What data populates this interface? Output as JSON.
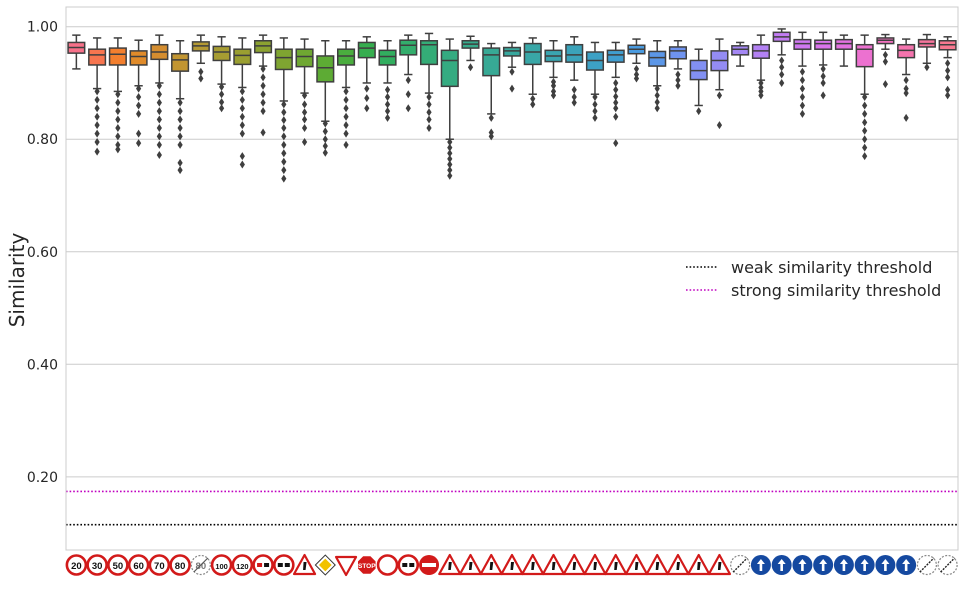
{
  "chart_data": {
    "type": "box",
    "ylabel": "Similarity",
    "ylim": [
      0.07,
      1.035
    ],
    "yticks": [
      0.2,
      0.4,
      0.6,
      0.8,
      1.0
    ],
    "ytick_labels": [
      "0.20",
      "0.40",
      "0.60",
      "0.80",
      "1.00"
    ],
    "grid": true,
    "legend_position": "center-right",
    "thresholds": [
      {
        "name": "weak similarity threshold",
        "value": 0.115,
        "color": "#000000"
      },
      {
        "name": "strong similarity threshold",
        "value": 0.174,
        "color": "#c000c0"
      }
    ],
    "categories": [
      {
        "icon": "speed-limit-20",
        "kind": "speed",
        "text": "20"
      },
      {
        "icon": "speed-limit-30",
        "kind": "speed",
        "text": "30"
      },
      {
        "icon": "speed-limit-50",
        "kind": "speed",
        "text": "50"
      },
      {
        "icon": "speed-limit-60",
        "kind": "speed",
        "text": "60"
      },
      {
        "icon": "speed-limit-70",
        "kind": "speed",
        "text": "70"
      },
      {
        "icon": "speed-limit-80",
        "kind": "speed",
        "text": "80"
      },
      {
        "icon": "end-speed-limit-80",
        "kind": "end-speed",
        "text": "80"
      },
      {
        "icon": "speed-limit-100",
        "kind": "speed",
        "text": "100"
      },
      {
        "icon": "speed-limit-120",
        "kind": "speed",
        "text": "120"
      },
      {
        "icon": "no-overtaking",
        "kind": "no-pass"
      },
      {
        "icon": "no-overtaking-trucks",
        "kind": "no-pass-truck"
      },
      {
        "icon": "right-of-way-next-intersection",
        "kind": "warn-triangle"
      },
      {
        "icon": "priority-road",
        "kind": "priority"
      },
      {
        "icon": "yield",
        "kind": "yield"
      },
      {
        "icon": "stop",
        "kind": "stop",
        "text": "STOP"
      },
      {
        "icon": "no-vehicles",
        "kind": "no-vehicles"
      },
      {
        "icon": "no-trucks",
        "kind": "no-pass-truck"
      },
      {
        "icon": "no-entry",
        "kind": "no-entry"
      },
      {
        "icon": "general-caution",
        "kind": "warn-triangle"
      },
      {
        "icon": "dangerous-curve-left",
        "kind": "warn-triangle"
      },
      {
        "icon": "dangerous-curve-right",
        "kind": "warn-triangle"
      },
      {
        "icon": "double-curve",
        "kind": "warn-triangle"
      },
      {
        "icon": "bumpy-road",
        "kind": "warn-triangle"
      },
      {
        "icon": "slippery-road",
        "kind": "warn-triangle"
      },
      {
        "icon": "road-narrows",
        "kind": "warn-triangle"
      },
      {
        "icon": "road-work",
        "kind": "warn-triangle"
      },
      {
        "icon": "traffic-signals",
        "kind": "warn-triangle"
      },
      {
        "icon": "pedestrians",
        "kind": "warn-triangle"
      },
      {
        "icon": "children-crossing",
        "kind": "warn-triangle"
      },
      {
        "icon": "bicycles-crossing",
        "kind": "warn-triangle"
      },
      {
        "icon": "ice-snow",
        "kind": "warn-triangle"
      },
      {
        "icon": "wild-animals",
        "kind": "warn-triangle"
      },
      {
        "icon": "end-of-all-limits",
        "kind": "end-limits"
      },
      {
        "icon": "turn-right-ahead",
        "kind": "mandatory"
      },
      {
        "icon": "turn-left-ahead",
        "kind": "mandatory"
      },
      {
        "icon": "ahead-only",
        "kind": "mandatory"
      },
      {
        "icon": "straight-or-right",
        "kind": "mandatory"
      },
      {
        "icon": "straight-or-left",
        "kind": "mandatory"
      },
      {
        "icon": "keep-right",
        "kind": "mandatory"
      },
      {
        "icon": "keep-left",
        "kind": "mandatory"
      },
      {
        "icon": "roundabout",
        "kind": "mandatory"
      },
      {
        "icon": "end-no-overtaking",
        "kind": "end-limits"
      },
      {
        "icon": "end-no-overtaking-trucks",
        "kind": "end-limits"
      }
    ],
    "boxes": [
      {
        "color": "#f77189",
        "whislo": 0.925,
        "q1": 0.953,
        "med": 0.963,
        "q3": 0.972,
        "whishi": 0.985,
        "fliers": []
      },
      {
        "color": "#f7754f",
        "whislo": 0.89,
        "q1": 0.932,
        "med": 0.95,
        "q3": 0.96,
        "whishi": 0.98,
        "fliers": [
          0.885,
          0.87,
          0.855,
          0.84,
          0.825,
          0.81,
          0.795,
          0.778
        ]
      },
      {
        "color": "#f37f2e",
        "whislo": 0.885,
        "q1": 0.932,
        "med": 0.951,
        "q3": 0.962,
        "whishi": 0.98,
        "fliers": [
          0.88,
          0.865,
          0.85,
          0.835,
          0.82,
          0.805,
          0.79,
          0.782
        ]
      },
      {
        "color": "#e08b2a",
        "whislo": 0.895,
        "q1": 0.932,
        "med": 0.947,
        "q3": 0.957,
        "whishi": 0.976,
        "fliers": [
          0.89,
          0.875,
          0.86,
          0.845,
          0.81,
          0.793
        ]
      },
      {
        "color": "#d48d2f",
        "whislo": 0.9,
        "q1": 0.942,
        "med": 0.955,
        "q3": 0.968,
        "whishi": 0.985,
        "fliers": [
          0.895,
          0.88,
          0.865,
          0.85,
          0.835,
          0.82,
          0.805,
          0.79,
          0.772
        ]
      },
      {
        "color": "#c29531",
        "whislo": 0.872,
        "q1": 0.921,
        "med": 0.941,
        "q3": 0.952,
        "whishi": 0.975,
        "fliers": [
          0.865,
          0.85,
          0.835,
          0.82,
          0.805,
          0.79,
          0.758,
          0.745
        ]
      },
      {
        "color": "#b49933",
        "whislo": 0.935,
        "q1": 0.957,
        "med": 0.966,
        "q3": 0.973,
        "whishi": 0.985,
        "fliers": [
          0.92,
          0.908
        ]
      },
      {
        "color": "#a69c32",
        "whislo": 0.898,
        "q1": 0.94,
        "med": 0.955,
        "q3": 0.965,
        "whishi": 0.982,
        "fliers": [
          0.893,
          0.88,
          0.866,
          0.855
        ]
      },
      {
        "color": "#9a9f31",
        "whislo": 0.892,
        "q1": 0.933,
        "med": 0.949,
        "q3": 0.96,
        "whishi": 0.98,
        "fliers": [
          0.885,
          0.87,
          0.855,
          0.84,
          0.825,
          0.81,
          0.77,
          0.755
        ]
      },
      {
        "color": "#8ca231",
        "whislo": 0.93,
        "q1": 0.954,
        "med": 0.966,
        "q3": 0.975,
        "whishi": 0.985,
        "fliers": [
          0.925,
          0.91,
          0.895,
          0.88,
          0.865,
          0.85,
          0.812
        ]
      },
      {
        "color": "#7fa531",
        "whislo": 0.868,
        "q1": 0.924,
        "med": 0.945,
        "q3": 0.96,
        "whishi": 0.98,
        "fliers": [
          0.862,
          0.848,
          0.834,
          0.82,
          0.805,
          0.79,
          0.775,
          0.76,
          0.745,
          0.73
        ]
      },
      {
        "color": "#6fa832",
        "whislo": 0.882,
        "q1": 0.929,
        "med": 0.947,
        "q3": 0.96,
        "whishi": 0.978,
        "fliers": [
          0.878,
          0.862,
          0.848,
          0.835,
          0.82,
          0.795
        ]
      },
      {
        "color": "#5dab34",
        "whislo": 0.832,
        "q1": 0.902,
        "med": 0.927,
        "q3": 0.948,
        "whishi": 0.975,
        "fliers": [
          0.828,
          0.814,
          0.8,
          0.788,
          0.776
        ]
      },
      {
        "color": "#4aad3e",
        "whislo": 0.892,
        "q1": 0.932,
        "med": 0.948,
        "q3": 0.96,
        "whishi": 0.975,
        "fliers": [
          0.885,
          0.87,
          0.855,
          0.84,
          0.825,
          0.81,
          0.79
        ]
      },
      {
        "color": "#36ae4f",
        "whislo": 0.9,
        "q1": 0.945,
        "med": 0.962,
        "q3": 0.972,
        "whishi": 0.982,
        "fliers": [
          0.89,
          0.873,
          0.855
        ]
      },
      {
        "color": "#32ae5f",
        "whislo": 0.9,
        "q1": 0.932,
        "med": 0.947,
        "q3": 0.958,
        "whishi": 0.975,
        "fliers": [
          0.888,
          0.875,
          0.862,
          0.85,
          0.838
        ]
      },
      {
        "color": "#33ad6c",
        "whislo": 0.915,
        "q1": 0.95,
        "med": 0.967,
        "q3": 0.976,
        "whishi": 0.985,
        "fliers": [
          0.905,
          0.88,
          0.855
        ]
      },
      {
        "color": "#34ac77",
        "whislo": 0.882,
        "q1": 0.933,
        "med": 0.968,
        "q3": 0.975,
        "whishi": 0.988,
        "fliers": [
          0.875,
          0.862,
          0.848,
          0.835,
          0.82
        ]
      },
      {
        "color": "#35ab81",
        "whislo": 0.8,
        "q1": 0.894,
        "med": 0.94,
        "q3": 0.958,
        "whishi": 0.978,
        "fliers": [
          0.795,
          0.785,
          0.775,
          0.765,
          0.755,
          0.745,
          0.735
        ]
      },
      {
        "color": "#36aa8b",
        "whislo": 0.94,
        "q1": 0.962,
        "med": 0.969,
        "q3": 0.975,
        "whishi": 0.983,
        "fliers": [
          0.928
        ]
      },
      {
        "color": "#37a995",
        "whislo": 0.845,
        "q1": 0.913,
        "med": 0.95,
        "q3": 0.962,
        "whishi": 0.97,
        "fliers": [
          0.838,
          0.812,
          0.805
        ]
      },
      {
        "color": "#38a89e",
        "whislo": 0.928,
        "q1": 0.948,
        "med": 0.957,
        "q3": 0.963,
        "whishi": 0.972,
        "fliers": [
          0.92,
          0.89
        ]
      },
      {
        "color": "#39a7a7",
        "whislo": 0.88,
        "q1": 0.933,
        "med": 0.955,
        "q3": 0.97,
        "whishi": 0.98,
        "fliers": [
          0.872,
          0.862
        ]
      },
      {
        "color": "#3aa5b0",
        "whislo": 0.91,
        "q1": 0.938,
        "med": 0.948,
        "q3": 0.958,
        "whishi": 0.975,
        "fliers": [
          0.902,
          0.895,
          0.885,
          0.878
        ]
      },
      {
        "color": "#3ba3ba",
        "whislo": 0.905,
        "q1": 0.937,
        "med": 0.95,
        "q3": 0.968,
        "whishi": 0.982,
        "fliers": [
          0.888,
          0.875,
          0.865
        ]
      },
      {
        "color": "#3da1c5",
        "whislo": 0.88,
        "q1": 0.923,
        "med": 0.94,
        "q3": 0.955,
        "whishi": 0.972,
        "fliers": [
          0.875,
          0.862,
          0.85,
          0.838
        ]
      },
      {
        "color": "#409ed0",
        "whislo": 0.91,
        "q1": 0.937,
        "med": 0.95,
        "q3": 0.958,
        "whishi": 0.972,
        "fliers": [
          0.9,
          0.888,
          0.876,
          0.865,
          0.855,
          0.84,
          0.793
        ]
      },
      {
        "color": "#4a9be0",
        "whislo": 0.935,
        "q1": 0.952,
        "med": 0.96,
        "q3": 0.967,
        "whishi": 0.978,
        "fliers": [
          0.925,
          0.915,
          0.908
        ]
      },
      {
        "color": "#5c97e8",
        "whislo": 0.895,
        "q1": 0.93,
        "med": 0.945,
        "q3": 0.956,
        "whishi": 0.975,
        "fliers": [
          0.89,
          0.878,
          0.866,
          0.855
        ]
      },
      {
        "color": "#6f93ef",
        "whislo": 0.925,
        "q1": 0.943,
        "med": 0.957,
        "q3": 0.964,
        "whishi": 0.975,
        "fliers": [
          0.915,
          0.905,
          0.895
        ]
      },
      {
        "color": "#8290f2",
        "whislo": 0.86,
        "q1": 0.906,
        "med": 0.922,
        "q3": 0.94,
        "whishi": 0.96,
        "fliers": [
          0.85
        ]
      },
      {
        "color": "#948cf4",
        "whislo": 0.888,
        "q1": 0.922,
        "med": 0.94,
        "q3": 0.957,
        "whishi": 0.978,
        "fliers": [
          0.878,
          0.825
        ]
      },
      {
        "color": "#a487f4",
        "whislo": 0.93,
        "q1": 0.95,
        "med": 0.96,
        "q3": 0.966,
        "whishi": 0.972,
        "fliers": []
      },
      {
        "color": "#b381f4",
        "whislo": 0.905,
        "q1": 0.944,
        "med": 0.957,
        "q3": 0.968,
        "whishi": 0.985,
        "fliers": [
          0.9,
          0.892,
          0.885,
          0.878
        ]
      },
      {
        "color": "#c27cf3",
        "whislo": 0.95,
        "q1": 0.974,
        "med": 0.982,
        "q3": 0.99,
        "whishi": 0.996,
        "fliers": [
          0.94,
          0.928,
          0.915,
          0.9
        ]
      },
      {
        "color": "#cf78f0",
        "whislo": 0.93,
        "q1": 0.96,
        "med": 0.97,
        "q3": 0.977,
        "whishi": 0.99,
        "fliers": [
          0.92,
          0.905,
          0.89,
          0.875,
          0.86,
          0.845
        ]
      },
      {
        "color": "#da74ec",
        "whislo": 0.932,
        "q1": 0.96,
        "med": 0.97,
        "q3": 0.976,
        "whishi": 0.99,
        "fliers": [
          0.925,
          0.912,
          0.9,
          0.878
        ]
      },
      {
        "color": "#e472e0",
        "whislo": 0.93,
        "q1": 0.96,
        "med": 0.97,
        "q3": 0.977,
        "whishi": 0.985,
        "fliers": []
      },
      {
        "color": "#ec71d0",
        "whislo": 0.88,
        "q1": 0.929,
        "med": 0.96,
        "q3": 0.968,
        "whishi": 0.985,
        "fliers": [
          0.875,
          0.86,
          0.845,
          0.83,
          0.815,
          0.8,
          0.785,
          0.77
        ]
      },
      {
        "color": "#f272bf",
        "whislo": 0.96,
        "q1": 0.97,
        "med": 0.976,
        "q3": 0.98,
        "whishi": 0.986,
        "fliers": [
          0.95,
          0.938,
          0.898
        ]
      },
      {
        "color": "#f574ae",
        "whislo": 0.915,
        "q1": 0.945,
        "med": 0.958,
        "q3": 0.968,
        "whishi": 0.978,
        "fliers": [
          0.905,
          0.89,
          0.882,
          0.838
        ]
      },
      {
        "color": "#f7769d",
        "whislo": 0.935,
        "q1": 0.964,
        "med": 0.97,
        "q3": 0.977,
        "whishi": 0.986,
        "fliers": [
          0.928
        ]
      },
      {
        "color": "#f7788f",
        "whislo": 0.945,
        "q1": 0.959,
        "med": 0.968,
        "q3": 0.975,
        "whishi": 0.982,
        "fliers": [
          0.935,
          0.922,
          0.91,
          0.888,
          0.878
        ]
      }
    ]
  }
}
